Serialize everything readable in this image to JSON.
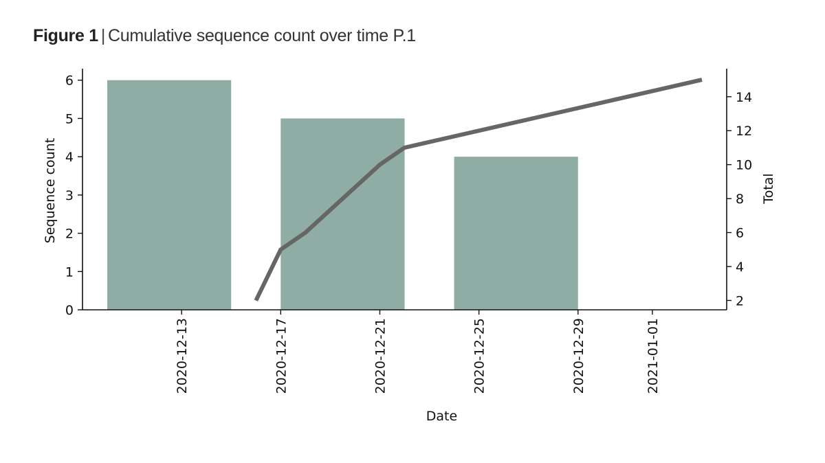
{
  "figure": {
    "number": "Figure 1",
    "separator": "|",
    "caption": "Cumulative sequence count over time P.1"
  },
  "chart_data": {
    "type": "bar",
    "x_type": "date",
    "xlabel": "Date",
    "ylabel": "Sequence count",
    "y2label": "Total",
    "xlim": [
      "2020-12-09",
      "2021-01-04"
    ],
    "ylim": [
      0,
      6.3
    ],
    "y2lim": [
      1.45,
      15.65
    ],
    "x_ticks": [
      "2020-12-13",
      "2020-12-17",
      "2020-12-21",
      "2020-12-25",
      "2020-12-29",
      "2021-01-01"
    ],
    "y_ticks": [
      0,
      1,
      2,
      3,
      4,
      5,
      6
    ],
    "y2_ticks": [
      2,
      4,
      6,
      8,
      10,
      12,
      14
    ],
    "grid": false,
    "legend": "none",
    "series": [
      {
        "type": "bar",
        "axis": "left",
        "color": "#8fada4",
        "bars": [
          {
            "start": "2020-12-10",
            "end": "2020-12-15",
            "value": 6
          },
          {
            "start": "2020-12-17",
            "end": "2020-12-22",
            "value": 5
          },
          {
            "start": "2020-12-24",
            "end": "2020-12-29",
            "value": 4
          }
        ]
      },
      {
        "type": "line",
        "axis": "right",
        "color": "#666666",
        "x": [
          "2020-12-16",
          "2020-12-17",
          "2020-12-18",
          "2020-12-21",
          "2020-12-22",
          "2021-01-03"
        ],
        "values": [
          2,
          5,
          6,
          10,
          11,
          15
        ]
      }
    ]
  }
}
